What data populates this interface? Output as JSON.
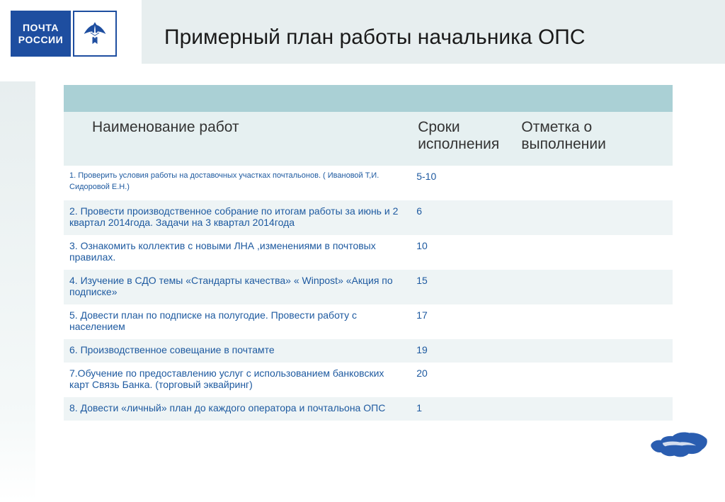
{
  "logo": {
    "line1": "ПОЧТА",
    "line2": "РОССИИ"
  },
  "title": "Примерный план работы начальника ОПС",
  "colors": {
    "logo_bg": "#1e4ea0",
    "header_band": "#e7eeef",
    "table_top": "#aad0d5",
    "table_header": "#e6f0f1",
    "row_even": "#eef4f5",
    "row_odd": "#ffffff",
    "cell_text": "#1e5aa0"
  },
  "columns": {
    "col1": "Наименование работ",
    "col2": "Сроки исполнения",
    "col3": "Отметка о выполнении"
  },
  "rows": [
    {
      "name": "1. Проверить условия работы на доставочных  участках почтальонов. ( Ивановой  Т,И. Сидоровой Е.Н.)",
      "term": "5-10",
      "mark": "",
      "first_small": true
    },
    {
      "name": "2. Провести производственное  собрание по итогам работы за июнь и 2 квартал 2014года. Задачи на 3 квартал 2014года",
      "term": "6",
      "mark": ""
    },
    {
      "name": "3. Ознакомить коллектив с новыми ЛНА ,изменениями в почтовых правилах.",
      "term": "10",
      "mark": ""
    },
    {
      "name": "4. Изучение в СДО темы  «Стандарты качества»  « Winpost»   «Акция по подписке»",
      "term": "15",
      "mark": ""
    },
    {
      "name": "5. Довести план по подписке на полугодие. Провести работу  с населением",
      "term": "17",
      "mark": ""
    },
    {
      "name": "6. Производственное совещание в почтамте",
      "term": "19",
      "mark": ""
    },
    {
      "name": "7.Обучение по  предоставлению услуг   с использованием банковских карт Связь Банка. (торговый   эквайринг)",
      "term": "20",
      "mark": ""
    },
    {
      "name": "8. Довести «личный»  план  до каждого оператора и почтальона ОПС",
      "term": "1",
      "mark": ""
    }
  ]
}
